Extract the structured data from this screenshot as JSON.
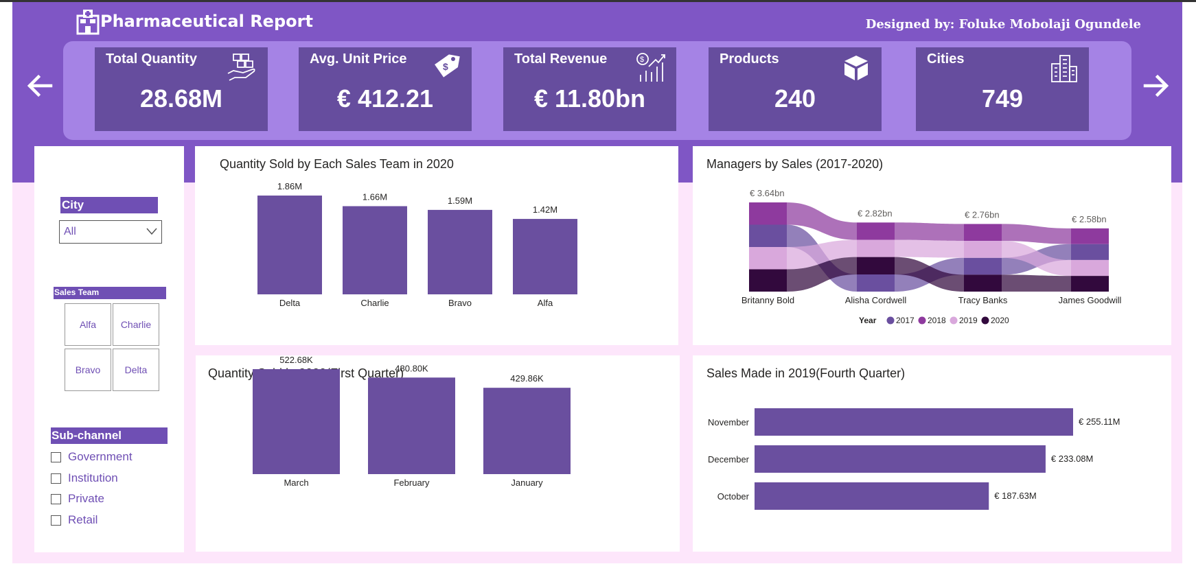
{
  "header": {
    "title": "Pharmaceutical Report",
    "designer": "Designed by: Foluke Mobolaji Ogundele"
  },
  "kpis": [
    {
      "label": "Total Quantity",
      "value": "28.68M",
      "icon": "hand-boxes-icon"
    },
    {
      "label": "Avg. Unit Price",
      "value": "€ 412.21",
      "icon": "price-tag-icon"
    },
    {
      "label": "Total Revenue",
      "value": "€ 11.80bn",
      "icon": "revenue-chart-icon"
    },
    {
      "label": "Products",
      "value": "240",
      "icon": "box-icon"
    },
    {
      "label": "Cities",
      "value": "749",
      "icon": "buildings-icon"
    }
  ],
  "filters": {
    "city": {
      "label": "City",
      "selected": "All"
    },
    "sales_team": {
      "label": "Sales Team",
      "options": [
        "Alfa",
        "Charlie",
        "Bravo",
        "Delta"
      ]
    },
    "sub_channel": {
      "label": "Sub-channel",
      "options": [
        "Government",
        "Institution",
        "Private",
        "Retail"
      ]
    }
  },
  "colors": {
    "banner": "#7f56c5",
    "kpi_strip": "#a583e5",
    "kpi_card": "#664d9e",
    "bar": "#6a4f9f",
    "background": "#fde6fb",
    "year_2017": "#6a4f9f",
    "year_2018": "#8e3a9e",
    "year_2019": "#d9a8dc",
    "year_2020": "#32093d"
  },
  "chart_data": [
    {
      "type": "bar",
      "title": "Quantity Sold by Each Sales Team in 2020",
      "categories": [
        "Delta",
        "Charlie",
        "Bravo",
        "Alfa"
      ],
      "values": [
        1.86,
        1.66,
        1.59,
        1.42
      ],
      "data_labels": [
        "1.86M",
        "1.66M",
        "1.59M",
        "1.42M"
      ],
      "unit": "M",
      "grid": false
    },
    {
      "type": "ribbon",
      "title": "Managers by Sales (2017-2020)",
      "categories": [
        "Britanny Bold",
        "Alisha Cordwell",
        "Tracy Banks",
        "James Goodwill"
      ],
      "totals": [
        3.64,
        2.82,
        2.76,
        2.58
      ],
      "data_labels": [
        "€ 3.64bn",
        "€ 2.82bn",
        "€ 2.76bn",
        "€ 2.58bn"
      ],
      "legend_title": "Year",
      "legend_position": "bottom",
      "series": [
        {
          "name": "2017",
          "values": [
            0.91,
            0.7,
            0.69,
            0.65
          ]
        },
        {
          "name": "2018",
          "values": [
            0.91,
            0.71,
            0.69,
            0.64
          ]
        },
        {
          "name": "2019",
          "values": [
            0.91,
            0.7,
            0.69,
            0.65
          ]
        },
        {
          "name": "2020",
          "values": [
            0.91,
            0.71,
            0.69,
            0.64
          ]
        }
      ]
    },
    {
      "type": "bar",
      "title": "Quantity Sold in 2020(First Quarter)",
      "categories": [
        "March",
        "February",
        "January"
      ],
      "values": [
        522.68,
        480.8,
        429.86
      ],
      "data_labels": [
        "522.68K",
        "480.80K",
        "429.86K"
      ],
      "unit": "K",
      "grid": false
    },
    {
      "type": "bar",
      "orientation": "horizontal",
      "title": "Sales Made in 2019(Fourth Quarter)",
      "categories": [
        "November",
        "December",
        "October"
      ],
      "values": [
        255.11,
        233.08,
        187.63
      ],
      "data_labels": [
        "€ 255.11M",
        "€ 233.08M",
        "€ 187.63M"
      ],
      "unit": "€ M",
      "grid": false
    }
  ]
}
